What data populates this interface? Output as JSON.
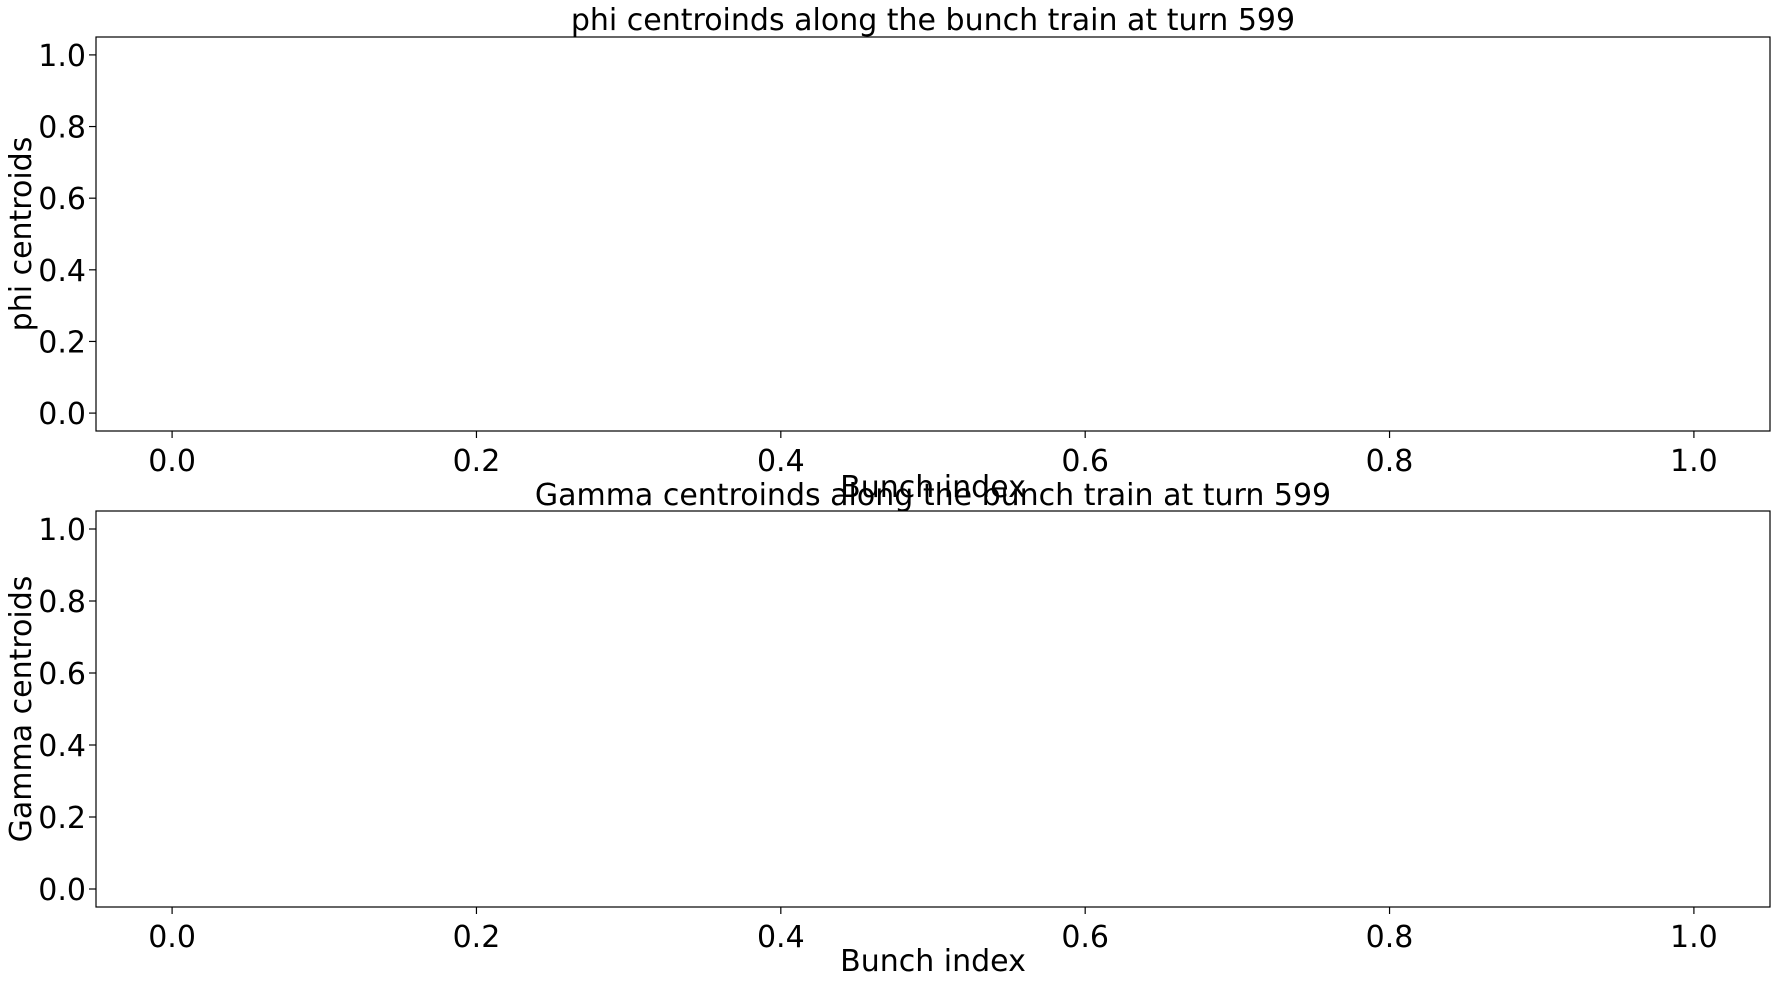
{
  "chart_data": [
    {
      "type": "line",
      "title": "phi centroinds along the bunch train at turn 599",
      "xlabel": "Bunch index",
      "ylabel": "phi centroids",
      "xlim": [
        -0.05,
        1.05
      ],
      "ylim": [
        -0.05,
        1.05
      ],
      "xticks": [
        0.0,
        0.2,
        0.4,
        0.6,
        0.8,
        1.0
      ],
      "xtick_labels": [
        "0.0",
        "0.2",
        "0.4",
        "0.6",
        "0.8",
        "1.0"
      ],
      "yticks": [
        0.0,
        0.2,
        0.4,
        0.6,
        0.8,
        1.0
      ],
      "ytick_labels": [
        "0.0",
        "0.2",
        "0.4",
        "0.6",
        "0.8",
        "1.0"
      ],
      "grid": false,
      "series": []
    },
    {
      "type": "line",
      "title": "Gamma centroinds along the bunch train at turn 599",
      "xlabel": "Bunch index",
      "ylabel": "Gamma centroids",
      "xlim": [
        -0.05,
        1.05
      ],
      "ylim": [
        -0.05,
        1.05
      ],
      "xticks": [
        0.0,
        0.2,
        0.4,
        0.6,
        0.8,
        1.0
      ],
      "xtick_labels": [
        "0.0",
        "0.2",
        "0.4",
        "0.6",
        "0.8",
        "1.0"
      ],
      "yticks": [
        0.0,
        0.2,
        0.4,
        0.6,
        0.8,
        1.0
      ],
      "ytick_labels": [
        "0.0",
        "0.2",
        "0.4",
        "0.6",
        "0.8",
        "1.0"
      ],
      "grid": false,
      "series": []
    }
  ]
}
